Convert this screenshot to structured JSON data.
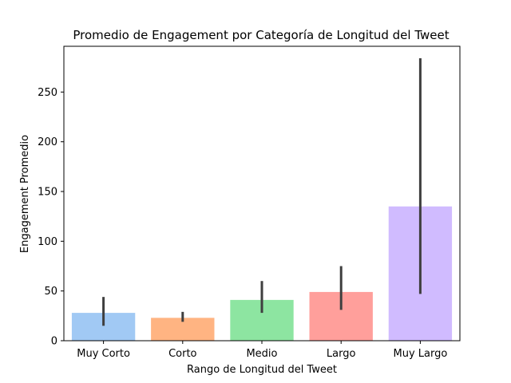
{
  "chart_data": {
    "type": "bar",
    "title": "Promedio de Engagement por Categoría de Longitud del Tweet",
    "xlabel": "Rango de Longitud del Tweet",
    "ylabel": "Engagement Promedio",
    "categories": [
      "Muy Corto",
      "Corto",
      "Medio",
      "Largo",
      "Muy Largo"
    ],
    "values": [
      28,
      23,
      41,
      49,
      135
    ],
    "error_low": [
      15,
      19,
      28,
      31,
      47
    ],
    "error_high": [
      44,
      29,
      60,
      75,
      284
    ],
    "ylim": [
      0,
      296
    ],
    "yticks": [
      0,
      50,
      100,
      150,
      200,
      250
    ],
    "colors": [
      "#a1c9f4",
      "#ffb482",
      "#8de5a1",
      "#ff9f9b",
      "#d0bbff"
    ],
    "error_color": "#3f3f3f",
    "grid": false,
    "legend": "none"
  }
}
